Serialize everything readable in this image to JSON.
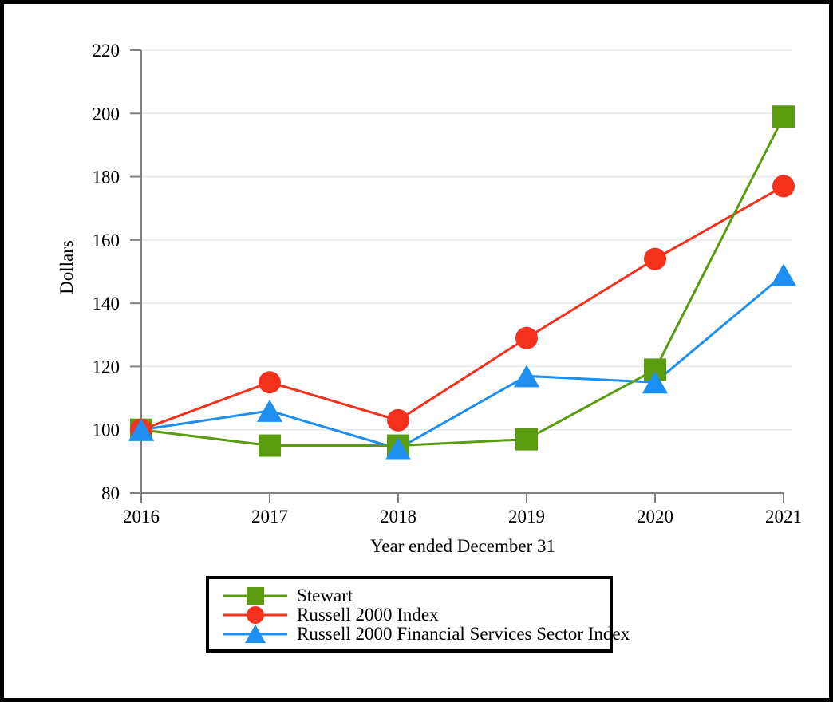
{
  "page": {
    "background": "#ffffff",
    "frame_color": "#000000"
  },
  "chart_data": {
    "type": "line",
    "title": "",
    "xlabel": "Year ended December 31",
    "ylabel": "Dollars",
    "categories": [
      "2016",
      "2017",
      "2018",
      "2019",
      "2020",
      "2021"
    ],
    "yticks": [
      220,
      200,
      180,
      160,
      140,
      120,
      100,
      80
    ],
    "ylim": [
      80,
      220
    ],
    "grid": "horizontal-light",
    "axis_color": "#808080",
    "gridline_color": "#e8e8e8",
    "legend_position": "bottom-left-boxed",
    "series": [
      {
        "name": "Stewart",
        "slug": "stewart",
        "marker": "square",
        "color": "#5a9b0f",
        "values": [
          100,
          95,
          95,
          97,
          119,
          199
        ]
      },
      {
        "name": "Russell 2000 Index",
        "slug": "russell-2000-index",
        "marker": "circle",
        "color": "#f4311d",
        "values": [
          100,
          115,
          103,
          129,
          154,
          177
        ]
      },
      {
        "name": "Russell 2000 Financial Services Sector Index",
        "slug": "russell-2000-financial-services-sector-index",
        "marker": "triangle",
        "color": "#1e8ff0",
        "values": [
          100,
          106,
          94,
          117,
          115,
          149
        ]
      }
    ]
  }
}
